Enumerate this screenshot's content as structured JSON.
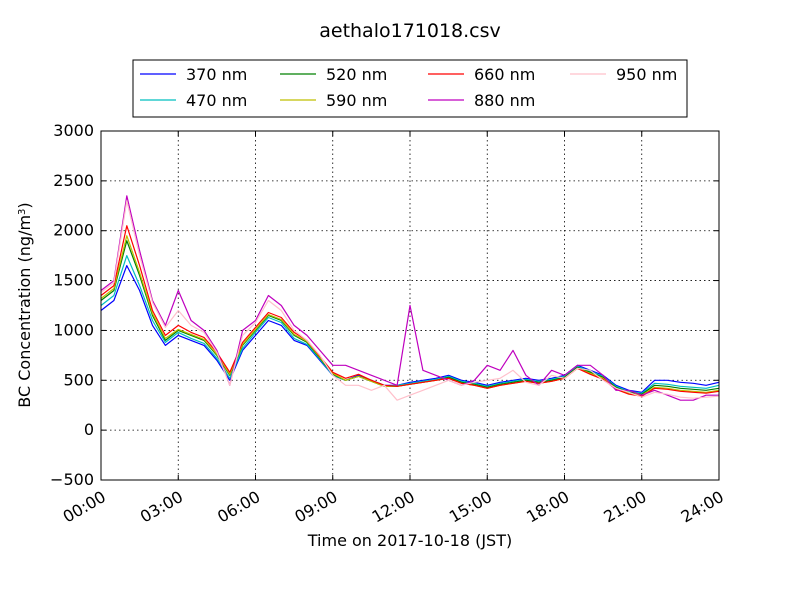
{
  "chart_data": {
    "type": "line",
    "title": "aethalo171018.csv",
    "xlabel": "Time on 2017-10-18 (JST)",
    "ylabel_main": "BC Concentration (ng/m",
    "ylabel_sup": "3",
    "ylabel_close": ")",
    "xlim": [
      0,
      24
    ],
    "ylim": [
      -500,
      3000
    ],
    "grid": true,
    "legend_position": "top",
    "x_ticks": [
      {
        "value": 0,
        "label": "00:00"
      },
      {
        "value": 3,
        "label": "03:00"
      },
      {
        "value": 6,
        "label": "06:00"
      },
      {
        "value": 9,
        "label": "09:00"
      },
      {
        "value": 12,
        "label": "12:00"
      },
      {
        "value": 15,
        "label": "15:00"
      },
      {
        "value": 18,
        "label": "18:00"
      },
      {
        "value": 21,
        "label": "21:00"
      },
      {
        "value": 24,
        "label": "24:00"
      }
    ],
    "y_ticks": [
      {
        "value": 3000,
        "label": "3000"
      },
      {
        "value": 2500,
        "label": "2500"
      },
      {
        "value": 2000,
        "label": "2000"
      },
      {
        "value": 1500,
        "label": "1500"
      },
      {
        "value": 1000,
        "label": "1000"
      },
      {
        "value": 500,
        "label": "500"
      },
      {
        "value": 0,
        "label": "0"
      },
      {
        "value": -500,
        "label": "−500"
      }
    ],
    "x": [
      0,
      0.5,
      1,
      1.5,
      2,
      2.5,
      3,
      3.5,
      4,
      4.5,
      5,
      5.5,
      6,
      6.5,
      7,
      7.5,
      8,
      8.5,
      9,
      9.5,
      10,
      10.5,
      11,
      11.5,
      12,
      12.5,
      13,
      13.5,
      14,
      14.5,
      15,
      15.5,
      16,
      16.5,
      17,
      17.5,
      18,
      18.5,
      19,
      19.5,
      20,
      20.5,
      21,
      21.5,
      22,
      22.5,
      23,
      23.5,
      24
    ],
    "series": [
      {
        "name": "370 nm",
        "color": "#0000ff",
        "values": [
          1200,
          1300,
          1650,
          1400,
          1050,
          850,
          950,
          900,
          850,
          700,
          500,
          800,
          950,
          1100,
          1050,
          900,
          850,
          700,
          550,
          500,
          550,
          500,
          450,
          450,
          480,
          500,
          520,
          550,
          500,
          480,
          450,
          480,
          500,
          520,
          500,
          520,
          550,
          650,
          600,
          550,
          450,
          400,
          380,
          500,
          500,
          480,
          470,
          450,
          480
        ]
      },
      {
        "name": "470 nm",
        "color": "#00bfbf",
        "values": [
          1250,
          1350,
          1750,
          1450,
          1100,
          880,
          980,
          920,
          870,
          720,
          520,
          820,
          980,
          1130,
          1080,
          920,
          860,
          710,
          550,
          500,
          540,
          490,
          440,
          450,
          470,
          490,
          510,
          540,
          490,
          470,
          440,
          470,
          490,
          510,
          490,
          510,
          540,
          640,
          590,
          540,
          440,
          390,
          370,
          470,
          460,
          440,
          430,
          420,
          450
        ]
      },
      {
        "name": "520 nm",
        "color": "#008000",
        "values": [
          1300,
          1400,
          1900,
          1550,
          1150,
          900,
          1000,
          950,
          900,
          750,
          550,
          850,
          1000,
          1150,
          1100,
          950,
          880,
          720,
          560,
          500,
          540,
          490,
          440,
          440,
          460,
          480,
          500,
          530,
          480,
          460,
          430,
          460,
          480,
          500,
          480,
          500,
          530,
          630,
          580,
          530,
          430,
          380,
          360,
          450,
          440,
          420,
          410,
          400,
          420
        ]
      },
      {
        "name": "590 nm",
        "color": "#bfbf00",
        "values": [
          1320,
          1420,
          1950,
          1580,
          1170,
          920,
          1010,
          960,
          910,
          760,
          560,
          860,
          1010,
          1160,
          1110,
          960,
          890,
          730,
          570,
          500,
          540,
          490,
          440,
          440,
          460,
          480,
          500,
          520,
          470,
          450,
          420,
          450,
          470,
          490,
          470,
          490,
          520,
          620,
          570,
          520,
          420,
          370,
          350,
          430,
          420,
          400,
          390,
          380,
          400
        ]
      },
      {
        "name": "660 nm",
        "color": "#ff0000",
        "values": [
          1350,
          1450,
          2050,
          1650,
          1200,
          950,
          1050,
          980,
          930,
          780,
          580,
          880,
          1030,
          1180,
          1130,
          980,
          900,
          740,
          580,
          520,
          560,
          500,
          450,
          440,
          460,
          480,
          500,
          520,
          470,
          450,
          420,
          450,
          470,
          490,
          470,
          490,
          520,
          620,
          560,
          510,
          410,
          360,
          340,
          420,
          410,
          390,
          380,
          370,
          390
        ]
      },
      {
        "name": "880 nm",
        "color": "#bf00bf",
        "values": [
          1400,
          1500,
          2350,
          1800,
          1300,
          1050,
          1400,
          1100,
          1000,
          800,
          450,
          1000,
          1100,
          1350,
          1250,
          1050,
          950,
          800,
          650,
          650,
          600,
          550,
          500,
          450,
          1250,
          600,
          550,
          500,
          450,
          500,
          650,
          600,
          800,
          550,
          450,
          600,
          550,
          650,
          650,
          550,
          400,
          400,
          350,
          400,
          350,
          300,
          300,
          350,
          350
        ]
      },
      {
        "name": "950 nm",
        "color": "#ffc0cb",
        "values": [
          1380,
          1480,
          2300,
          1750,
          1280,
          1030,
          1200,
          1050,
          980,
          780,
          450,
          950,
          1080,
          1300,
          1200,
          1000,
          900,
          750,
          550,
          450,
          450,
          400,
          450,
          300,
          350,
          400,
          450,
          500,
          450,
          480,
          500,
          520,
          600,
          480,
          450,
          550,
          520,
          620,
          600,
          500,
          420,
          380,
          330,
          380,
          360,
          330,
          320,
          330,
          340
        ]
      }
    ]
  }
}
